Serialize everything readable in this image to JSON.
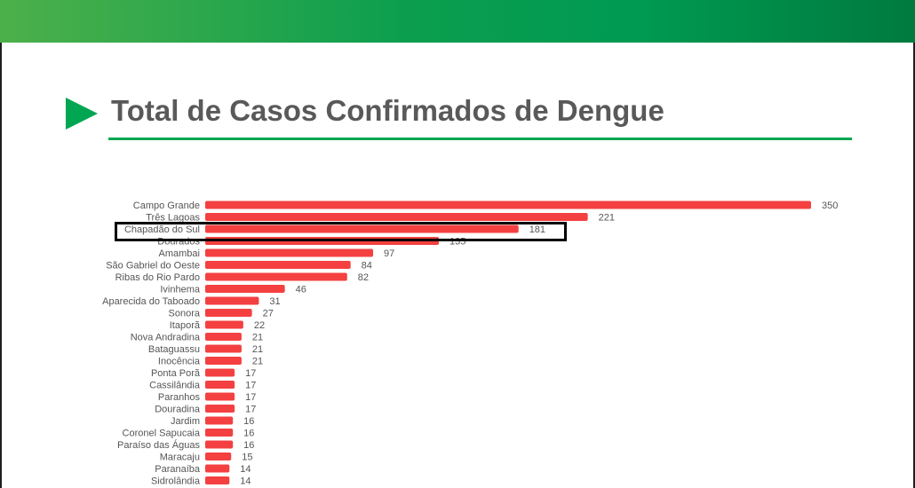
{
  "header": {
    "title": "Total de Casos Confirmados de Dengue",
    "accent_color": "#00a651",
    "icon": "play-triangle-icon"
  },
  "chart_data": {
    "type": "bar",
    "orientation": "horizontal",
    "title": "",
    "xlabel": "",
    "ylabel": "",
    "bar_color": "#f44040",
    "xlim": [
      0,
      350
    ],
    "grid": false,
    "categories": [
      "Campo Grande",
      "Três Lagoas",
      "Chapadão do Sul",
      "Dourados",
      "Amambai",
      "São Gabriel do Oeste",
      "Ribas do Rio Pardo",
      "Ivinhema",
      "Aparecida do Taboado",
      "Sonora",
      "Itaporã",
      "Nova Andradina",
      "Bataguassu",
      "Inocência",
      "Ponta Porã",
      "Cassilândia",
      "Paranhos",
      "Douradina",
      "Jardim",
      "Coronel Sapucaia",
      "Paraíso das Águas",
      "Maracaju",
      "Paranaíba",
      "Sidrolândia"
    ],
    "values": [
      350,
      221,
      181,
      135,
      97,
      84,
      82,
      46,
      31,
      27,
      22,
      21,
      21,
      21,
      17,
      17,
      17,
      17,
      16,
      16,
      16,
      15,
      14,
      14
    ],
    "highlighted": "Chapadão do Sul"
  }
}
